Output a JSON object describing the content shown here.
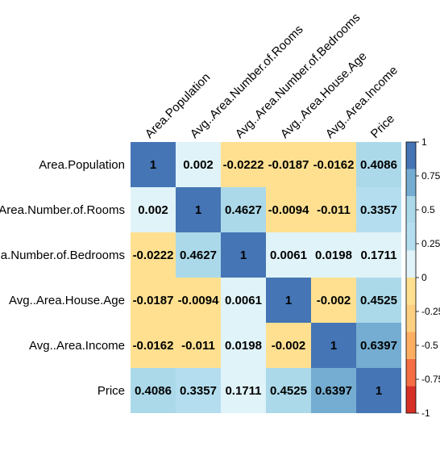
{
  "chart_data": {
    "type": "heatmap",
    "title": "",
    "labels": [
      "Area.Population",
      "Avg..Area.Number.of.Rooms",
      "Avg..Area.Number.of.Bedrooms",
      "Avg..Area.House.Age",
      "Avg..Area.Income",
      "Price"
    ],
    "matrix": [
      [
        1,
        0.002,
        -0.0222,
        -0.0187,
        -0.0162,
        0.4086
      ],
      [
        0.002,
        1,
        0.4627,
        -0.0094,
        -0.011,
        0.3357
      ],
      [
        -0.0222,
        0.4627,
        1,
        0.0061,
        0.0198,
        0.1711
      ],
      [
        -0.0187,
        -0.0094,
        0.0061,
        1,
        -0.002,
        0.4525
      ],
      [
        -0.0162,
        -0.011,
        0.0198,
        -0.002,
        1,
        0.6397
      ],
      [
        0.4086,
        0.3357,
        0.1711,
        0.4525,
        0.6397,
        1
      ]
    ],
    "colorbar": {
      "range": [
        -1,
        1
      ],
      "ticks": [
        "1",
        "0.75",
        "0.5",
        "0.25",
        "0",
        "-0.25",
        "-0.5",
        "-0.75",
        "-1"
      ],
      "tick_values": [
        1,
        0.75,
        0.5,
        0.25,
        0,
        -0.25,
        -0.5,
        -0.75,
        -1
      ],
      "bins": [
        {
          "from": -1.0,
          "to": -0.8,
          "color": "#d73027"
        },
        {
          "from": -0.8,
          "to": -0.6,
          "color": "#f46d43"
        },
        {
          "from": -0.6,
          "to": -0.4,
          "color": "#fdae61"
        },
        {
          "from": -0.4,
          "to": -0.2,
          "color": "#fdcf80"
        },
        {
          "from": -0.2,
          "to": 0.0,
          "color": "#fee090"
        },
        {
          "from": 0.0,
          "to": 0.2,
          "color": "#e0f3f8"
        },
        {
          "from": 0.2,
          "to": 0.4,
          "color": "#b4def0"
        },
        {
          "from": 0.4,
          "to": 0.6,
          "color": "#abd9e9"
        },
        {
          "from": 0.6,
          "to": 0.8,
          "color": "#74add1"
        },
        {
          "from": 0.8,
          "to": 1.0,
          "color": "#4575b4"
        }
      ]
    }
  }
}
